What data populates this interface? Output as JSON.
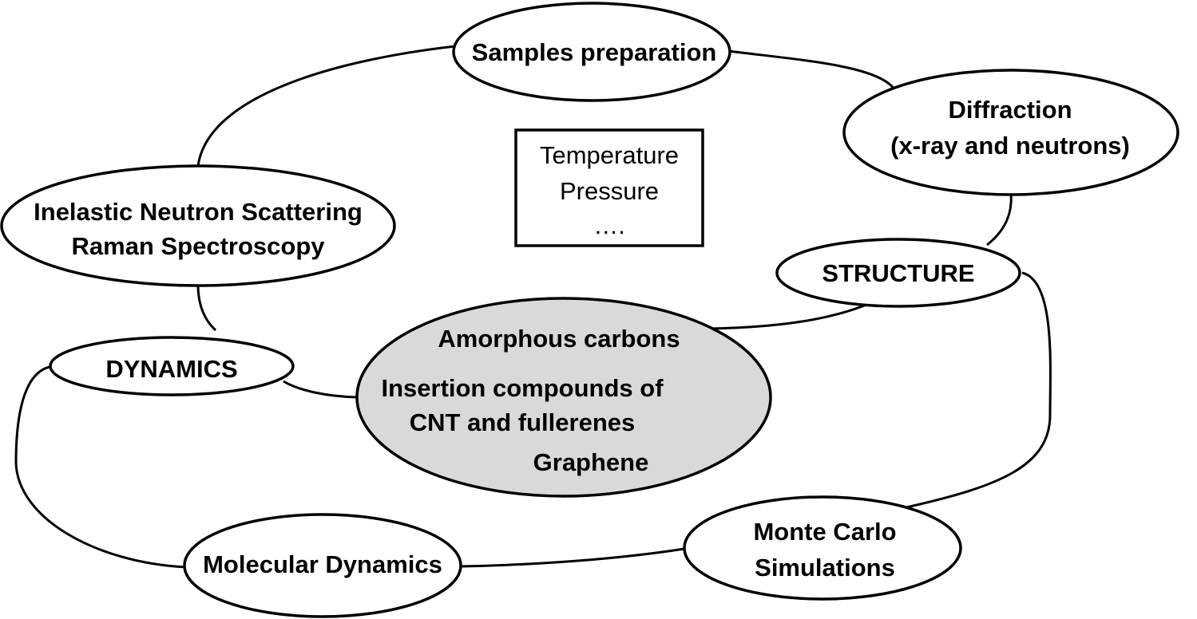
{
  "nodes": {
    "samples_preparation": {
      "lines": [
        "Samples preparation"
      ]
    },
    "diffraction": {
      "lines": [
        "Diffraction",
        "(x-ray and neutrons)"
      ]
    },
    "structure": {
      "lines": [
        "STRUCTURE"
      ]
    },
    "inelastic": {
      "lines": [
        "Inelastic Neutron Scattering",
        "Raman Spectroscopy"
      ]
    },
    "dynamics": {
      "lines": [
        "DYNAMICS"
      ]
    },
    "molecular_dynamics": {
      "lines": [
        "Molecular Dynamics"
      ]
    },
    "monte_carlo": {
      "lines": [
        "Monte Carlo",
        "Simulations"
      ]
    },
    "materials": {
      "lines": [
        "Amorphous carbons",
        "Insertion compounds of",
        "CNT and fullerenes",
        "Graphene"
      ]
    }
  },
  "conditions_box": {
    "lines": [
      "Temperature",
      "Pressure",
      "…."
    ]
  },
  "colors": {
    "center_fill": "#d9d9d9",
    "stroke": "#000000",
    "background": "#ffffff"
  }
}
